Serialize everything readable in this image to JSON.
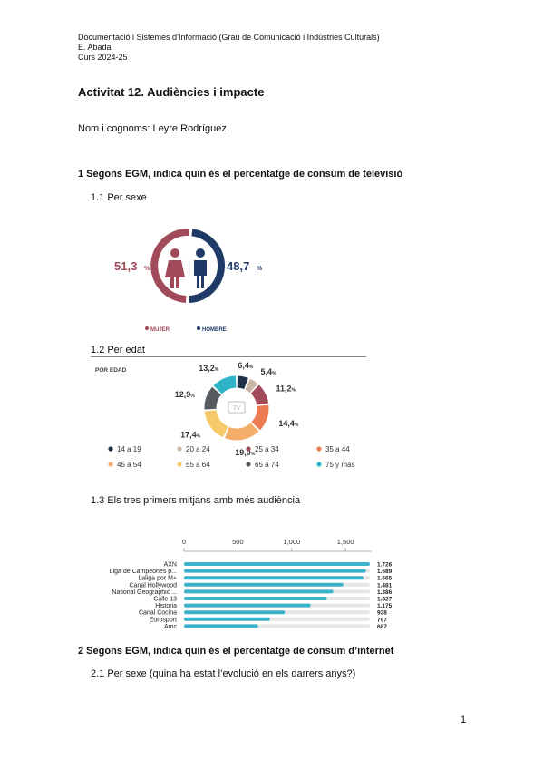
{
  "header": {
    "line1": "Documentació i Sistemes d’Informació (Grau de Comunicació i Indústries Culturals)",
    "line2": "E. Abadal",
    "line3": "Curs 2024-25"
  },
  "title": "Activitat 12. Audiències i impacte",
  "name_line": "Nom i cognoms: Leyre Rodríguez",
  "section1": {
    "heading": "1 Segons EGM, indica quin és el percentatge de consum de televisió",
    "sub1": "1.1 Per sexe",
    "sub2": "1.2 Per edat",
    "sub3": "1.3 Els tres primers mitjans amb més audiència"
  },
  "section2": {
    "heading": "2 Segons EGM, indica quin és el percentatge de consum d’internet",
    "sub1": "2.1 Per sexe (quina ha estat l’evolució en els darrers anys?)"
  },
  "page_number": "1",
  "chart_data": [
    {
      "type": "pie",
      "categories": [
        "MUJER",
        "HOMBRE"
      ],
      "values": [
        51.3,
        48.7
      ],
      "labels": [
        "51,3",
        "48,7"
      ],
      "unit": "%",
      "colors": [
        "#a14a5a",
        "#1f3a66"
      ],
      "legend_position": "bottom"
    },
    {
      "type": "pie",
      "title": "POR EDAD",
      "categories": [
        "14 a 19",
        "20 a 24",
        "25 a 34",
        "35 a 44",
        "45 a 54",
        "55 a 64",
        "65 a 74",
        "75 y más"
      ],
      "values": [
        6.4,
        5.4,
        11.2,
        14.4,
        19.0,
        17.4,
        12.9,
        13.2
      ],
      "labels": [
        "6,4",
        "5,4",
        "11,2",
        "14,4",
        "19,0",
        "17,4",
        "12,9",
        "13,2"
      ],
      "unit": "%",
      "center_label": "TV",
      "colors": [
        "#1f3147",
        "#c9b7a6",
        "#a14a5a",
        "#ec7a52",
        "#f4ae6a",
        "#f6c96a",
        "#555b5f",
        "#2fb3c6"
      ],
      "legend_position": "bottom"
    },
    {
      "type": "bar",
      "orientation": "horizontal",
      "categories": [
        "AXN",
        "Liga de Campeones p...",
        "Laliga por M+",
        "Canal Hollywood",
        "National Geographic ...",
        "Calle 13",
        "Historia",
        "Canal Cocina",
        "Eurosport",
        "Amc"
      ],
      "values": [
        1726,
        1689,
        1665,
        1481,
        1386,
        1327,
        1175,
        938,
        797,
        687
      ],
      "value_labels": [
        "1.726",
        "1.689",
        "1.665",
        "1.481",
        "1.386",
        "1.327",
        "1.175",
        "938",
        "797",
        "687"
      ],
      "x_ticks": [
        "0",
        "500",
        "1,000",
        "1,500"
      ],
      "x_tick_values": [
        0,
        500,
        1000,
        1500
      ],
      "xlim": [
        0,
        1726
      ],
      "bar_color": "#3bb3cb",
      "track_color": "#e6e6e6"
    }
  ]
}
